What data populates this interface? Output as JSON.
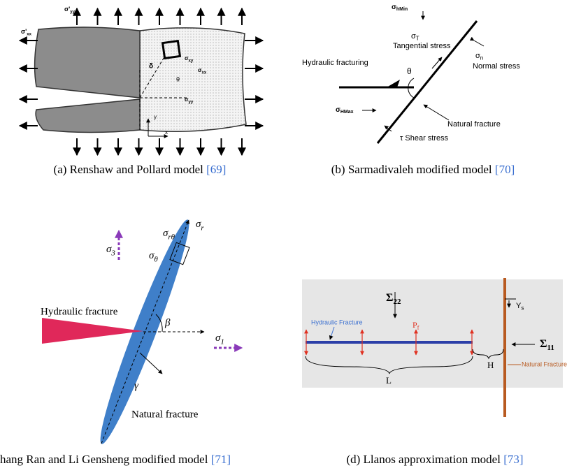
{
  "panels": [
    {
      "caption": "(a) Renshaw and Pollard model",
      "ref": "[69]",
      "labels": [
        {
          "base": "σ'",
          "sub": "yy"
        },
        {
          "base": "σ'",
          "sub": "xx"
        },
        {
          "base": "σ",
          "sub": "xy"
        },
        {
          "base": "σ",
          "sub": "xx"
        },
        {
          "base": "σ",
          "sub": "yy"
        },
        "δ",
        "θ",
        "x",
        "y"
      ]
    },
    {
      "caption": "(b) Sarmadivaleh modified model",
      "ref": "[70]",
      "labels": [
        {
          "base": "σ",
          "sub": "hMin"
        },
        {
          "base": "σ",
          "sub": "T"
        },
        "Tangential stress",
        {
          "base": "σ",
          "sub": "n"
        },
        "Normal stress",
        "Hydraulic fracturing",
        "θ",
        {
          "base": "σ",
          "sub": "HMax"
        },
        "Natural fracture",
        "τ Shear stress"
      ]
    },
    {
      "caption": "hang Ran and Li Gensheng modified model",
      "ref": "[71]",
      "labels": [
        {
          "base": "σ",
          "sub": "3"
        },
        {
          "base": "σ",
          "sub": "r"
        },
        {
          "base": "σ",
          "sub": "rθ"
        },
        {
          "base": "σ",
          "sub": "θ"
        },
        "Hydraulic fracture",
        "β",
        {
          "base": "σ",
          "sub": "1"
        },
        "γ",
        "Natural fracture"
      ]
    },
    {
      "caption": "(d) Llanos approximation model",
      "ref": "[73]",
      "labels": [
        {
          "base": "Σ",
          "sub": "22"
        },
        {
          "base": "Y",
          "sub": "s"
        },
        "Hydraulic Fracture",
        {
          "base": "P",
          "sub": "f"
        },
        {
          "base": "Σ",
          "sub": "11"
        },
        "H",
        "L",
        "Natural Fracture"
      ]
    }
  ]
}
